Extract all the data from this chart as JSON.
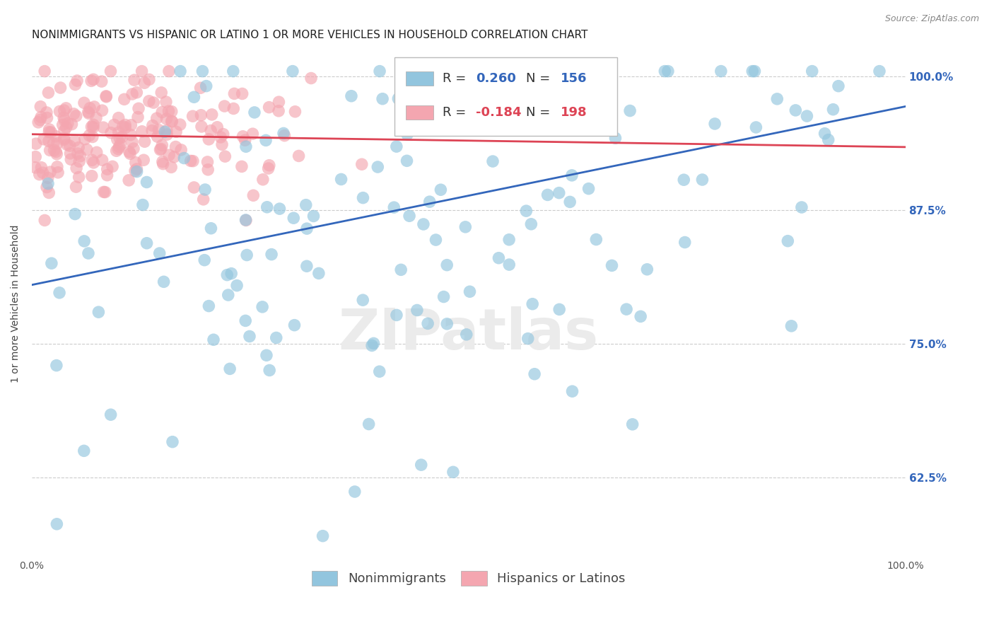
{
  "title": "NONIMMIGRANTS VS HISPANIC OR LATINO 1 OR MORE VEHICLES IN HOUSEHOLD CORRELATION CHART",
  "source": "Source: ZipAtlas.com",
  "ylabel": "1 or more Vehicles in Household",
  "blue_R": 0.26,
  "blue_N": 156,
  "pink_R": -0.184,
  "pink_N": 198,
  "blue_color": "#92C5DE",
  "pink_color": "#F4A6B0",
  "blue_line_color": "#3366BB",
  "pink_line_color": "#DD4455",
  "blue_label": "Nonimmigrants",
  "pink_label": "Hispanics or Latinos",
  "xlim": [
    0,
    1
  ],
  "ylim": [
    0.55,
    1.025
  ],
  "yticks": [
    0.625,
    0.75,
    0.875,
    1.0
  ],
  "ytick_labels": [
    "62.5%",
    "75.0%",
    "87.5%",
    "100.0%"
  ],
  "watermark": "ZIPatlas",
  "title_fontsize": 11,
  "axis_label_fontsize": 10,
  "tick_fontsize": 10,
  "legend_fontsize": 13,
  "background_color": "#ffffff",
  "grid_color": "#cccccc",
  "blue_line_y0": 0.805,
  "blue_line_y1": 0.972,
  "pink_line_y0": 0.946,
  "pink_line_y1": 0.934
}
